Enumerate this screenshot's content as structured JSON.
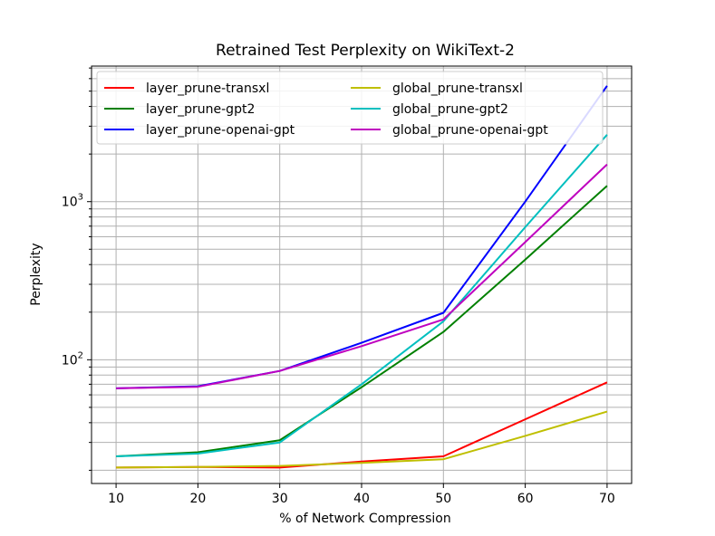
{
  "chart_data": {
    "type": "line",
    "title": "Retrained Test Perplexity on WikiText-2",
    "xlabel": "% of Network Compression",
    "ylabel": "Perplexity",
    "x": [
      10,
      20,
      30,
      40,
      50,
      60,
      70
    ],
    "x_ticks": [
      10,
      20,
      30,
      40,
      50,
      60,
      70
    ],
    "xlim": [
      7,
      73
    ],
    "y_scale": "log",
    "ylim": [
      16.5,
      7200
    ],
    "y_major_ticks": [
      {
        "value": 100,
        "base": "10",
        "exp": "2"
      },
      {
        "value": 1000,
        "base": "10",
        "exp": "3"
      }
    ],
    "grid": "both",
    "legend_position": "upper-left",
    "series": [
      {
        "name": "layer_prune-transxl",
        "color": "#ff0000",
        "x": [
          10,
          20,
          30,
          40,
          50,
          60,
          70
        ],
        "values": [
          20.8,
          21.0,
          20.8,
          22.7,
          24.5,
          42.0,
          72.0
        ]
      },
      {
        "name": "layer_prune-gpt2",
        "color": "#008000",
        "x": [
          10,
          20,
          30,
          40,
          50,
          60,
          70
        ],
        "values": [
          24.5,
          26.0,
          31.0,
          67.0,
          150.0,
          430.0,
          1260.0
        ]
      },
      {
        "name": "layer_prune-openai-gpt",
        "color": "#0000ff",
        "x": [
          10,
          20,
          30,
          40,
          50,
          60,
          70
        ],
        "values": [
          66.0,
          68.0,
          85.0,
          128.0,
          198.0,
          1000.0,
          5400.0
        ]
      },
      {
        "name": "global_prune-transxl",
        "color": "#bfbf00",
        "x": [
          10,
          20,
          30,
          40,
          50,
          60,
          70
        ],
        "values": [
          20.8,
          21.0,
          21.3,
          22.3,
          23.5,
          33.0,
          47.0
        ]
      },
      {
        "name": "global_prune-gpt2",
        "color": "#00bfbf",
        "x": [
          10,
          20,
          30,
          40,
          50,
          60,
          70
        ],
        "values": [
          24.5,
          25.5,
          30.0,
          70.0,
          175.0,
          690.0,
          2650.0
        ]
      },
      {
        "name": "global_prune-openai-gpt",
        "color": "#bf00bf",
        "x": [
          10,
          20,
          30,
          40,
          50,
          60,
          70
        ],
        "values": [
          66.0,
          67.5,
          85.0,
          122.0,
          180.0,
          555.0,
          1720.0
        ]
      }
    ]
  }
}
